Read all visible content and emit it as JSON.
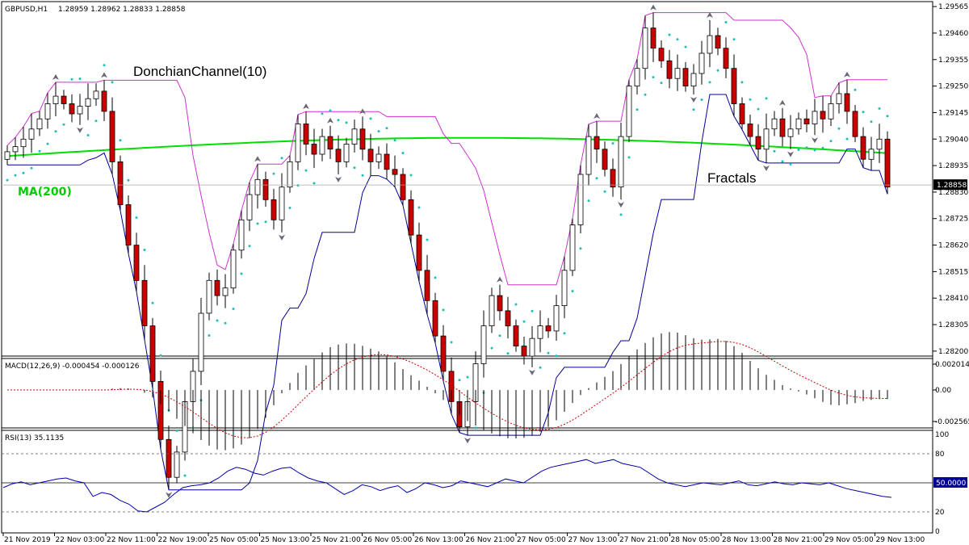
{
  "header": {
    "symbol": "GBPUSD,H1",
    "ohlc": "1.28959 1.28962 1.28833 1.28858"
  },
  "annotations": {
    "donchian": "DonchianChannel(10)",
    "ma": "MA(200)",
    "fractals": "Fractals"
  },
  "colors": {
    "bull": "#ffffff",
    "bear": "#cc0000",
    "ma": "#00dd00",
    "donchian_upper": "#cc33cc",
    "donchian_lower": "#000099",
    "sar": "#22bbbb",
    "macd_hist": "#000000",
    "macd_signal": "#cc0000",
    "rsi": "#0000aa"
  },
  "chart_data": {
    "type": "candlestick",
    "price_axis": {
      "ticks": [
        "1.29565",
        "1.29460",
        "1.29355",
        "1.29250",
        "1.29145",
        "1.29040",
        "1.28935",
        "1.28830",
        "1.28725",
        "1.28620",
        "1.28515",
        "1.28410",
        "1.28305",
        "1.28200"
      ],
      "current": "1.28858",
      "range": [
        1.2819,
        1.29575
      ]
    },
    "time_axis": [
      "21 Nov 2019",
      "22 Nov 03:00",
      "22 Nov 11:00",
      "22 Nov 19:00",
      "25 Nov 05:00",
      "25 Nov 13:00",
      "25 Nov 21:00",
      "26 Nov 05:00",
      "26 Nov 13:00",
      "26 Nov 21:00",
      "27 Nov 05:00",
      "27 Nov 13:00",
      "27 Nov 21:00",
      "28 Nov 05:00",
      "28 Nov 13:00",
      "28 Nov 21:00",
      "29 Nov 05:00",
      "29 Nov 13:00"
    ],
    "closes": [
      1.2899,
      1.2901,
      1.2904,
      1.2908,
      1.2912,
      1.2918,
      1.2921,
      1.2918,
      1.2914,
      1.2917,
      1.292,
      1.2923,
      1.2915,
      1.2895,
      1.2878,
      1.2862,
      1.2848,
      1.283,
      1.2808,
      1.2785,
      1.277,
      1.278,
      1.28,
      1.2812,
      1.2835,
      1.2848,
      1.2842,
      1.2845,
      1.286,
      1.2872,
      1.2882,
      1.2888,
      1.288,
      1.2872,
      1.2885,
      1.2895,
      1.291,
      1.2902,
      1.2898,
      1.2905,
      1.29,
      1.2895,
      1.2902,
      1.2908,
      1.29,
      1.2895,
      1.2898,
      1.2892,
      1.289,
      1.288,
      1.2866,
      1.2852,
      1.284,
      1.2826,
      1.2812,
      1.28,
      1.279,
      1.28,
      1.2815,
      1.283,
      1.2842,
      1.2836,
      1.283,
      1.2822,
      1.2818,
      1.2825,
      1.283,
      1.2828,
      1.2838,
      1.2852,
      1.287,
      1.289,
      1.2905,
      1.29,
      1.2892,
      1.2885,
      1.2905,
      1.2925,
      1.2932,
      1.2948,
      1.294,
      1.2935,
      1.2928,
      1.2932,
      1.2925,
      1.293,
      1.2938,
      1.2945,
      1.294,
      1.2932,
      1.2918,
      1.291,
      1.2905,
      1.29,
      1.2908,
      1.2912,
      1.2905,
      1.2908,
      1.2912,
      1.291,
      1.2915,
      1.2912,
      1.2918,
      1.2922,
      1.2915,
      1.2905,
      1.2896,
      1.29,
      1.2904,
      1.2885
    ],
    "ma200_range": [
      1.28955,
      1.29045
    ],
    "macd": {
      "label": "MACD(12,26,9) -0.000454 -0.000126",
      "ticks": [
        "0.002014",
        "0.00",
        "-0.002565"
      ]
    },
    "rsi": {
      "label": "RSI(13) 35.1135",
      "ticks": [
        "100",
        "80",
        "50.0000",
        "20",
        "0"
      ],
      "levels": [
        80,
        50,
        20
      ],
      "values": [
        45,
        49,
        51,
        48,
        50,
        52,
        54,
        55,
        52,
        50,
        36,
        40,
        38,
        32,
        28,
        21,
        20,
        25,
        30,
        38,
        45,
        47,
        48,
        50,
        55,
        62,
        66,
        64,
        60,
        58,
        62,
        65,
        66,
        60,
        55,
        52,
        50,
        44,
        38,
        42,
        48,
        46,
        42,
        45,
        47,
        40,
        44,
        50,
        48,
        45,
        47,
        52,
        50,
        48,
        46,
        50,
        54,
        52,
        50,
        56,
        62,
        66,
        68,
        70,
        72,
        74,
        70,
        72,
        74,
        70,
        68,
        66,
        60,
        54,
        50,
        48,
        46,
        48,
        50,
        49,
        48,
        50,
        52,
        48,
        47,
        49,
        51,
        49,
        48,
        50,
        49,
        48,
        50,
        47,
        44,
        42,
        40,
        38,
        36,
        35
      ]
    }
  }
}
